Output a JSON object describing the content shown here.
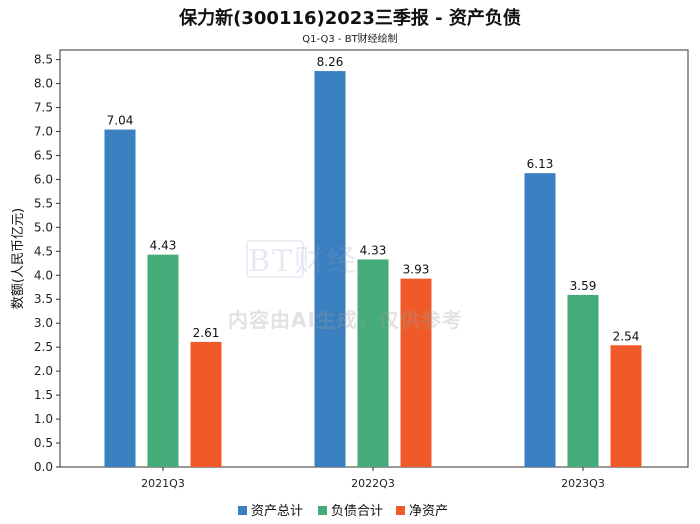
{
  "chart_data": {
    "type": "bar",
    "title": "保力新(300116)2023三季报 - 资产负债",
    "subtitle": "Q1-Q3 - BT财经绘制",
    "ylabel": "数额(人民币亿元)",
    "xlabel": "",
    "ylim": [
      0,
      8.7
    ],
    "yticks": [
      "0.0",
      "0.5",
      "1.0",
      "1.5",
      "2.0",
      "2.5",
      "3.0",
      "3.5",
      "4.0",
      "4.5",
      "5.0",
      "5.5",
      "6.0",
      "6.5",
      "7.0",
      "7.5",
      "8.0",
      "8.5"
    ],
    "categories": [
      "2021Q3",
      "2022Q3",
      "2023Q3"
    ],
    "series": [
      {
        "name": "资产总计",
        "color": "#3a7fbf",
        "values": [
          7.04,
          8.26,
          6.13
        ]
      },
      {
        "name": "负债合计",
        "color": "#45ab78",
        "values": [
          4.43,
          4.33,
          3.59
        ]
      },
      {
        "name": "净资产",
        "color": "#f05a28",
        "values": [
          2.61,
          3.93,
          2.54
        ]
      }
    ],
    "grid": false,
    "legend_position": "bottom"
  },
  "watermark": {
    "brand": "BT财经",
    "brand_sub": "BUSINESS TIMES",
    "notice": "内容由AI生成，仅供参考"
  }
}
